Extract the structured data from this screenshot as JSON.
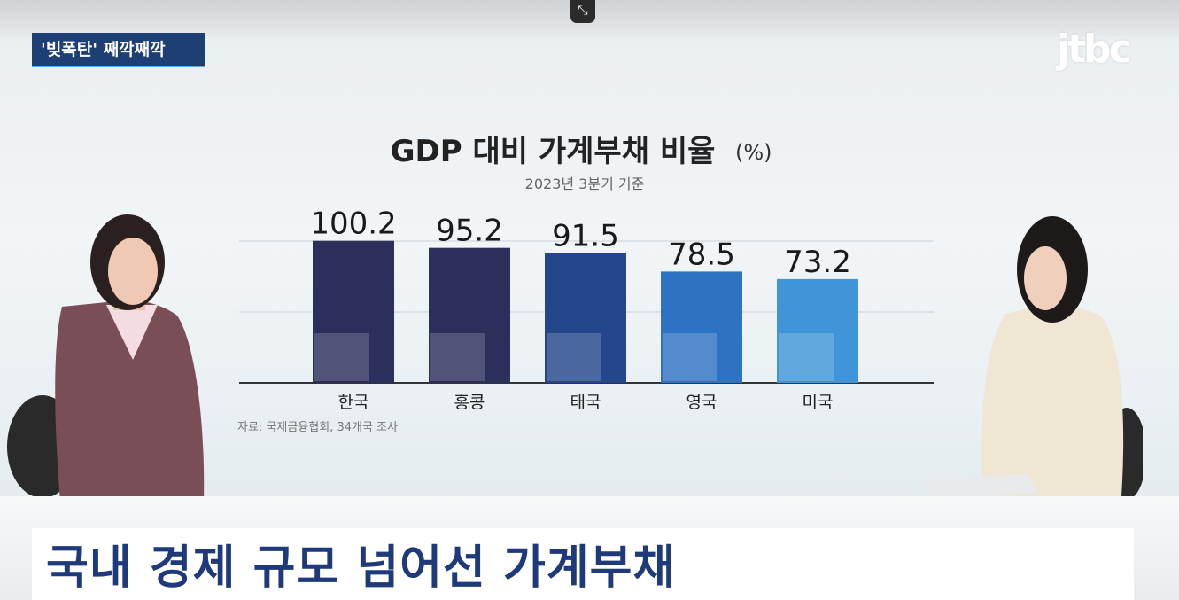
{
  "program": {
    "tag_label": "'빚폭탄' 째깍째깍",
    "logo": "jtbc"
  },
  "caption": "국내 경제 규모 넘어선 가계부채",
  "colors": {
    "bar_dark": "#2a2f5c",
    "bar_mid": "#23478a",
    "bar_light": "#2e72c2",
    "bar_sky": "#3f95d8",
    "caption_text": "#1f3a7a"
  },
  "chart_data": {
    "type": "bar",
    "title": "GDP 대비 가계부채 비율",
    "title_unit": "(%)",
    "subtitle": "2023년 3분기 기준",
    "source": "자료: 국제금융협회, 34개국 조사",
    "categories": [
      "한국",
      "홍콩",
      "태국",
      "영국",
      "미국"
    ],
    "values": [
      100.2,
      95.2,
      91.5,
      78.5,
      73.2
    ],
    "value_labels": [
      "100.2",
      "95.2",
      "91.5",
      "78.5",
      "73.2"
    ],
    "flags": [
      "south-korea-flag",
      "hong-kong-flag",
      "thailand-flag",
      "uk-flag",
      "us-flag"
    ],
    "ylim": [
      0,
      100
    ],
    "gridlines": [
      50,
      100
    ],
    "grid": true,
    "xlabel": "",
    "ylabel": ""
  }
}
